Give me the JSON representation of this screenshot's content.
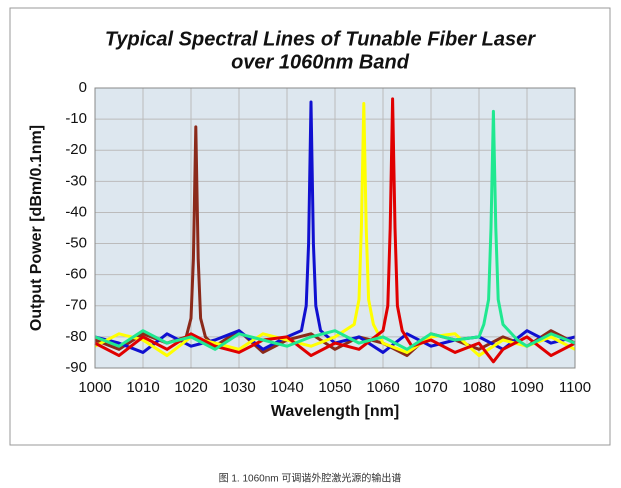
{
  "chart_data": {
    "type": "line",
    "title": "Typical Spectral Lines of Tunable  Fiber Laser",
    "subtitle": "over 1060nm Band",
    "x_label": "Wavelength [nm]",
    "y_label": "Output Power [dBm/0.1nm]",
    "caption": "图 1. 1060nm 可调谐外腔激光源的输出谱",
    "xlim": [
      1000,
      1100
    ],
    "xticks": [
      1000,
      1010,
      1020,
      1030,
      1040,
      1050,
      1060,
      1070,
      1080,
      1090,
      1100
    ],
    "ylim": [
      -90,
      0
    ],
    "yticks": [
      0,
      -10,
      -20,
      -30,
      -40,
      -50,
      -60,
      -70,
      -80,
      -90
    ],
    "grid": true,
    "plot_background": "#dde7ef",
    "series": [
      {
        "color": "#8b2a1a",
        "x": [
          1000,
          1005,
          1010,
          1015,
          1019,
          1020,
          1020.5,
          1021,
          1021.5,
          1022,
          1023,
          1025,
          1030,
          1035,
          1040,
          1045,
          1050,
          1055,
          1060,
          1065,
          1070,
          1075,
          1080,
          1085,
          1090,
          1095,
          1100
        ],
        "values": [
          -81,
          -84,
          -79,
          -82,
          -80,
          -74,
          -55,
          -12.5,
          -55,
          -74,
          -80,
          -83,
          -78,
          -85,
          -81,
          -79,
          -84,
          -80,
          -82,
          -86,
          -79,
          -81,
          -84,
          -80,
          -83,
          -78,
          -82
        ]
      },
      {
        "color": "#1010d0",
        "x": [
          1000,
          1005,
          1010,
          1015,
          1020,
          1025,
          1030,
          1035,
          1040,
          1043,
          1044,
          1044.5,
          1045,
          1045.5,
          1046,
          1047,
          1050,
          1055,
          1060,
          1065,
          1070,
          1075,
          1080,
          1085,
          1090,
          1095,
          1100
        ],
        "values": [
          -80,
          -82,
          -85,
          -79,
          -83,
          -81,
          -78,
          -84,
          -80,
          -78,
          -70,
          -50,
          -4.5,
          -50,
          -70,
          -78,
          -82,
          -80,
          -85,
          -79,
          -83,
          -81,
          -80,
          -84,
          -78,
          -82,
          -80
        ]
      },
      {
        "color": "#ffff00",
        "x": [
          1000,
          1005,
          1010,
          1015,
          1020,
          1025,
          1030,
          1035,
          1040,
          1045,
          1050,
          1054,
          1055,
          1055.5,
          1056,
          1056.5,
          1057,
          1058,
          1060,
          1065,
          1070,
          1075,
          1080,
          1085,
          1090,
          1095,
          1100
        ],
        "values": [
          -83,
          -79,
          -81,
          -86,
          -80,
          -82,
          -84,
          -79,
          -81,
          -83,
          -80,
          -76,
          -68,
          -45,
          -5,
          -45,
          -68,
          -76,
          -82,
          -85,
          -80,
          -79,
          -86,
          -81,
          -83,
          -80,
          -84
        ]
      },
      {
        "color": "#e00000",
        "x": [
          1000,
          1005,
          1010,
          1015,
          1020,
          1025,
          1030,
          1035,
          1040,
          1045,
          1050,
          1055,
          1060,
          1061,
          1061.5,
          1062,
          1062.5,
          1063,
          1064,
          1066,
          1070,
          1075,
          1080,
          1083,
          1085,
          1090,
          1095,
          1100
        ],
        "values": [
          -82,
          -86,
          -80,
          -84,
          -79,
          -83,
          -85,
          -81,
          -80,
          -86,
          -82,
          -84,
          -78,
          -70,
          -45,
          -3.5,
          -45,
          -70,
          -78,
          -83,
          -81,
          -85,
          -82,
          -88,
          -84,
          -80,
          -86,
          -82
        ]
      },
      {
        "color": "#20e890",
        "x": [
          1000,
          1005,
          1010,
          1015,
          1020,
          1025,
          1030,
          1035,
          1040,
          1045,
          1050,
          1055,
          1060,
          1065,
          1070,
          1075,
          1080,
          1081,
          1082,
          1082.5,
          1083,
          1083.5,
          1084,
          1085,
          1088,
          1090,
          1095,
          1100
        ],
        "values": [
          -80,
          -83,
          -78,
          -82,
          -80,
          -84,
          -79,
          -81,
          -83,
          -80,
          -78,
          -82,
          -80,
          -84,
          -79,
          -81,
          -80,
          -76,
          -68,
          -45,
          -7.5,
          -45,
          -68,
          -76,
          -81,
          -83,
          -79,
          -82
        ]
      }
    ]
  }
}
